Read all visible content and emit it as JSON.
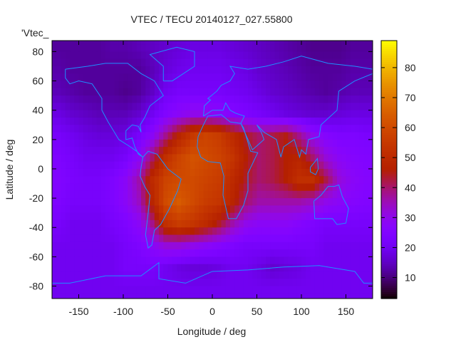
{
  "chart_data": {
    "type": "heatmap",
    "title": "VTEC / TECU 20140127_027.55800",
    "xlabel": "Longitude / deg",
    "ylabel": "Latitude / deg",
    "legend_label": "'Vtec_",
    "legend_placement": "top-left",
    "xlim": [
      -180,
      180
    ],
    "ylim": [
      -88.5,
      87.5
    ],
    "xticks": [
      -150,
      -100,
      -50,
      0,
      50,
      100,
      150
    ],
    "yticks": [
      -80,
      -60,
      -40,
      -20,
      0,
      20,
      40,
      60,
      80
    ],
    "colorbar": {
      "range": [
        3,
        89
      ],
      "ticks": [
        10,
        20,
        30,
        40,
        50,
        60,
        70,
        80
      ],
      "palette": "black-blue-purple-red-orange-yellow"
    },
    "grid": false,
    "lon_centers": [
      -172.5,
      -157.5,
      -142.5,
      -127.5,
      -112.5,
      -97.5,
      -82.5,
      -67.5,
      -52.5,
      -37.5,
      -22.5,
      -7.5,
      7.5,
      22.5,
      37.5,
      52.5,
      67.5,
      82.5,
      97.5,
      112.5,
      127.5,
      142.5,
      157.5,
      172.5
    ],
    "lat_centers": [
      82.5,
      67.5,
      52.5,
      37.5,
      22.5,
      7.5,
      -7.5,
      -22.5,
      -37.5,
      -52.5,
      -67.5,
      -82.5
    ],
    "values": [
      [
        12,
        12,
        12,
        12,
        13,
        13,
        14,
        15,
        16,
        17,
        18,
        18,
        18,
        17,
        16,
        15,
        14,
        13,
        12,
        11,
        11,
        11,
        12,
        12
      ],
      [
        13,
        12,
        12,
        12,
        12,
        12,
        12,
        14,
        17,
        19,
        20,
        20,
        20,
        19,
        18,
        16,
        15,
        14,
        13,
        12,
        12,
        12,
        13,
        13
      ],
      [
        14,
        13,
        12,
        12,
        12,
        11,
        12,
        15,
        20,
        22,
        22,
        22,
        22,
        21,
        20,
        18,
        16,
        15,
        14,
        13,
        12,
        13,
        14,
        14
      ],
      [
        18,
        16,
        15,
        14,
        14,
        14,
        16,
        20,
        25,
        28,
        30,
        30,
        28,
        26,
        24,
        22,
        20,
        18,
        17,
        16,
        16,
        17,
        18,
        18
      ],
      [
        22,
        20,
        18,
        17,
        17,
        18,
        22,
        28,
        38,
        48,
        55,
        58,
        56,
        50,
        44,
        40,
        42,
        45,
        38,
        30,
        26,
        24,
        24,
        23
      ],
      [
        24,
        22,
        20,
        20,
        20,
        22,
        28,
        40,
        52,
        58,
        62,
        60,
        58,
        54,
        46,
        40,
        42,
        46,
        48,
        40,
        32,
        28,
        26,
        25
      ],
      [
        25,
        23,
        22,
        22,
        24,
        28,
        36,
        50,
        58,
        60,
        60,
        58,
        56,
        50,
        44,
        40,
        42,
        46,
        52,
        52,
        42,
        32,
        28,
        26
      ],
      [
        24,
        22,
        22,
        22,
        24,
        28,
        34,
        48,
        60,
        64,
        60,
        56,
        54,
        48,
        40,
        36,
        36,
        36,
        36,
        34,
        30,
        28,
        26,
        25
      ],
      [
        22,
        20,
        20,
        20,
        22,
        24,
        28,
        38,
        52,
        56,
        54,
        50,
        44,
        36,
        30,
        28,
        28,
        28,
        26,
        24,
        22,
        22,
        22,
        22
      ],
      [
        20,
        20,
        20,
        20,
        20,
        22,
        24,
        28,
        32,
        32,
        30,
        28,
        26,
        24,
        22,
        22,
        22,
        22,
        22,
        22,
        20,
        20,
        20,
        20
      ],
      [
        20,
        20,
        20,
        20,
        20,
        22,
        22,
        22,
        20,
        18,
        17,
        17,
        18,
        20,
        20,
        18,
        16,
        17,
        18,
        20,
        20,
        20,
        20,
        20
      ],
      [
        20,
        20,
        20,
        20,
        20,
        20,
        20,
        20,
        20,
        20,
        20,
        20,
        20,
        20,
        20,
        20,
        20,
        20,
        20,
        20,
        20,
        20,
        20,
        20
      ]
    ],
    "coastlines": [
      {
        "name": "north-america",
        "points": [
          [
            -165,
            68
          ],
          [
            -140,
            70
          ],
          [
            -120,
            72
          ],
          [
            -95,
            72
          ],
          [
            -80,
            65
          ],
          [
            -65,
            60
          ],
          [
            -55,
            50
          ],
          [
            -70,
            43
          ],
          [
            -76,
            35
          ],
          [
            -81,
            30
          ],
          [
            -80,
            25
          ],
          [
            -83,
            29
          ],
          [
            -90,
            30
          ],
          [
            -97,
            26
          ],
          [
            -97,
            20
          ],
          [
            -90,
            21
          ],
          [
            -87,
            15
          ],
          [
            -83,
            10
          ],
          [
            -78,
            8
          ],
          [
            -85,
            12
          ],
          [
            -92,
            15
          ],
          [
            -105,
            20
          ],
          [
            -110,
            25
          ],
          [
            -117,
            32
          ],
          [
            -124,
            40
          ],
          [
            -124,
            48
          ],
          [
            -135,
            58
          ],
          [
            -150,
            60
          ],
          [
            -160,
            58
          ],
          [
            -165,
            62
          ],
          [
            -165,
            68
          ]
        ]
      },
      {
        "name": "south-america",
        "points": [
          [
            -78,
            8
          ],
          [
            -72,
            12
          ],
          [
            -62,
            10
          ],
          [
            -50,
            0
          ],
          [
            -35,
            -7
          ],
          [
            -39,
            -15
          ],
          [
            -48,
            -27
          ],
          [
            -58,
            -38
          ],
          [
            -65,
            -42
          ],
          [
            -68,
            -52
          ],
          [
            -72,
            -54
          ],
          [
            -75,
            -45
          ],
          [
            -72,
            -30
          ],
          [
            -70,
            -18
          ],
          [
            -76,
            -12
          ],
          [
            -81,
            -5
          ],
          [
            -80,
            1
          ],
          [
            -78,
            8
          ]
        ]
      },
      {
        "name": "africa",
        "points": [
          [
            -17,
            15
          ],
          [
            -16,
            22
          ],
          [
            -10,
            30
          ],
          [
            -5,
            36
          ],
          [
            10,
            37
          ],
          [
            20,
            32
          ],
          [
            32,
            31
          ],
          [
            35,
            28
          ],
          [
            43,
            12
          ],
          [
            51,
            11
          ],
          [
            40,
            -3
          ],
          [
            40,
            -15
          ],
          [
            35,
            -25
          ],
          [
            27,
            -34
          ],
          [
            18,
            -34
          ],
          [
            12,
            -18
          ],
          [
            13,
            -5
          ],
          [
            9,
            4
          ],
          [
            -5,
            5
          ],
          [
            -13,
            8
          ],
          [
            -17,
            15
          ]
        ]
      },
      {
        "name": "eurasia",
        "points": [
          [
            -10,
            36
          ],
          [
            -9,
            43
          ],
          [
            -2,
            47
          ],
          [
            -5,
            48
          ],
          [
            5,
            53
          ],
          [
            10,
            57
          ],
          [
            20,
            60
          ],
          [
            25,
            65
          ],
          [
            20,
            70
          ],
          [
            40,
            68
          ],
          [
            60,
            70
          ],
          [
            80,
            73
          ],
          [
            100,
            77
          ],
          [
            130,
            72
          ],
          [
            160,
            70
          ],
          [
            180,
            68
          ],
          [
            180,
            65
          ],
          [
            160,
            60
          ],
          [
            142,
            53
          ],
          [
            140,
            40
          ],
          [
            122,
            30
          ],
          [
            120,
            22
          ],
          [
            108,
            20
          ],
          [
            105,
            10
          ],
          [
            100,
            13
          ],
          [
            98,
            8
          ],
          [
            92,
            20
          ],
          [
            80,
            15
          ],
          [
            77,
            8
          ],
          [
            72,
            20
          ],
          [
            58,
            25
          ],
          [
            50,
            30
          ],
          [
            55,
            25
          ],
          [
            58,
            20
          ],
          [
            45,
            13
          ],
          [
            40,
            20
          ],
          [
            32,
            31
          ],
          [
            36,
            36
          ],
          [
            26,
            38
          ],
          [
            20,
            40
          ],
          [
            15,
            45
          ],
          [
            12,
            40
          ],
          [
            0,
            40
          ],
          [
            -10,
            36
          ]
        ]
      },
      {
        "name": "australia",
        "points": [
          [
            114,
            -22
          ],
          [
            122,
            -18
          ],
          [
            130,
            -12
          ],
          [
            137,
            -12
          ],
          [
            142,
            -11
          ],
          [
            146,
            -19
          ],
          [
            153,
            -27
          ],
          [
            150,
            -37
          ],
          [
            140,
            -38
          ],
          [
            135,
            -34
          ],
          [
            115,
            -34
          ],
          [
            114,
            -22
          ]
        ]
      },
      {
        "name": "greenland",
        "points": [
          [
            -55,
            60
          ],
          [
            -45,
            60
          ],
          [
            -20,
            70
          ],
          [
            -20,
            80
          ],
          [
            -40,
            83
          ],
          [
            -70,
            78
          ],
          [
            -55,
            70
          ],
          [
            -55,
            60
          ]
        ]
      },
      {
        "name": "borneo",
        "points": [
          [
            110,
            1
          ],
          [
            118,
            7
          ],
          [
            119,
            0
          ],
          [
            116,
            -4
          ],
          [
            110,
            -2
          ],
          [
            110,
            1
          ]
        ]
      },
      {
        "name": "antarctica",
        "points": [
          [
            -180,
            -78
          ],
          [
            -160,
            -78
          ],
          [
            -120,
            -73
          ],
          [
            -80,
            -73
          ],
          [
            -60,
            -64
          ],
          [
            -60,
            -75
          ],
          [
            -30,
            -78
          ],
          [
            0,
            -70
          ],
          [
            40,
            -69
          ],
          [
            80,
            -67
          ],
          [
            120,
            -66
          ],
          [
            160,
            -70
          ],
          [
            170,
            -78
          ],
          [
            180,
            -78
          ]
        ]
      }
    ],
    "colors": {
      "coastline": "#1e90ff",
      "text": "#222222"
    }
  }
}
